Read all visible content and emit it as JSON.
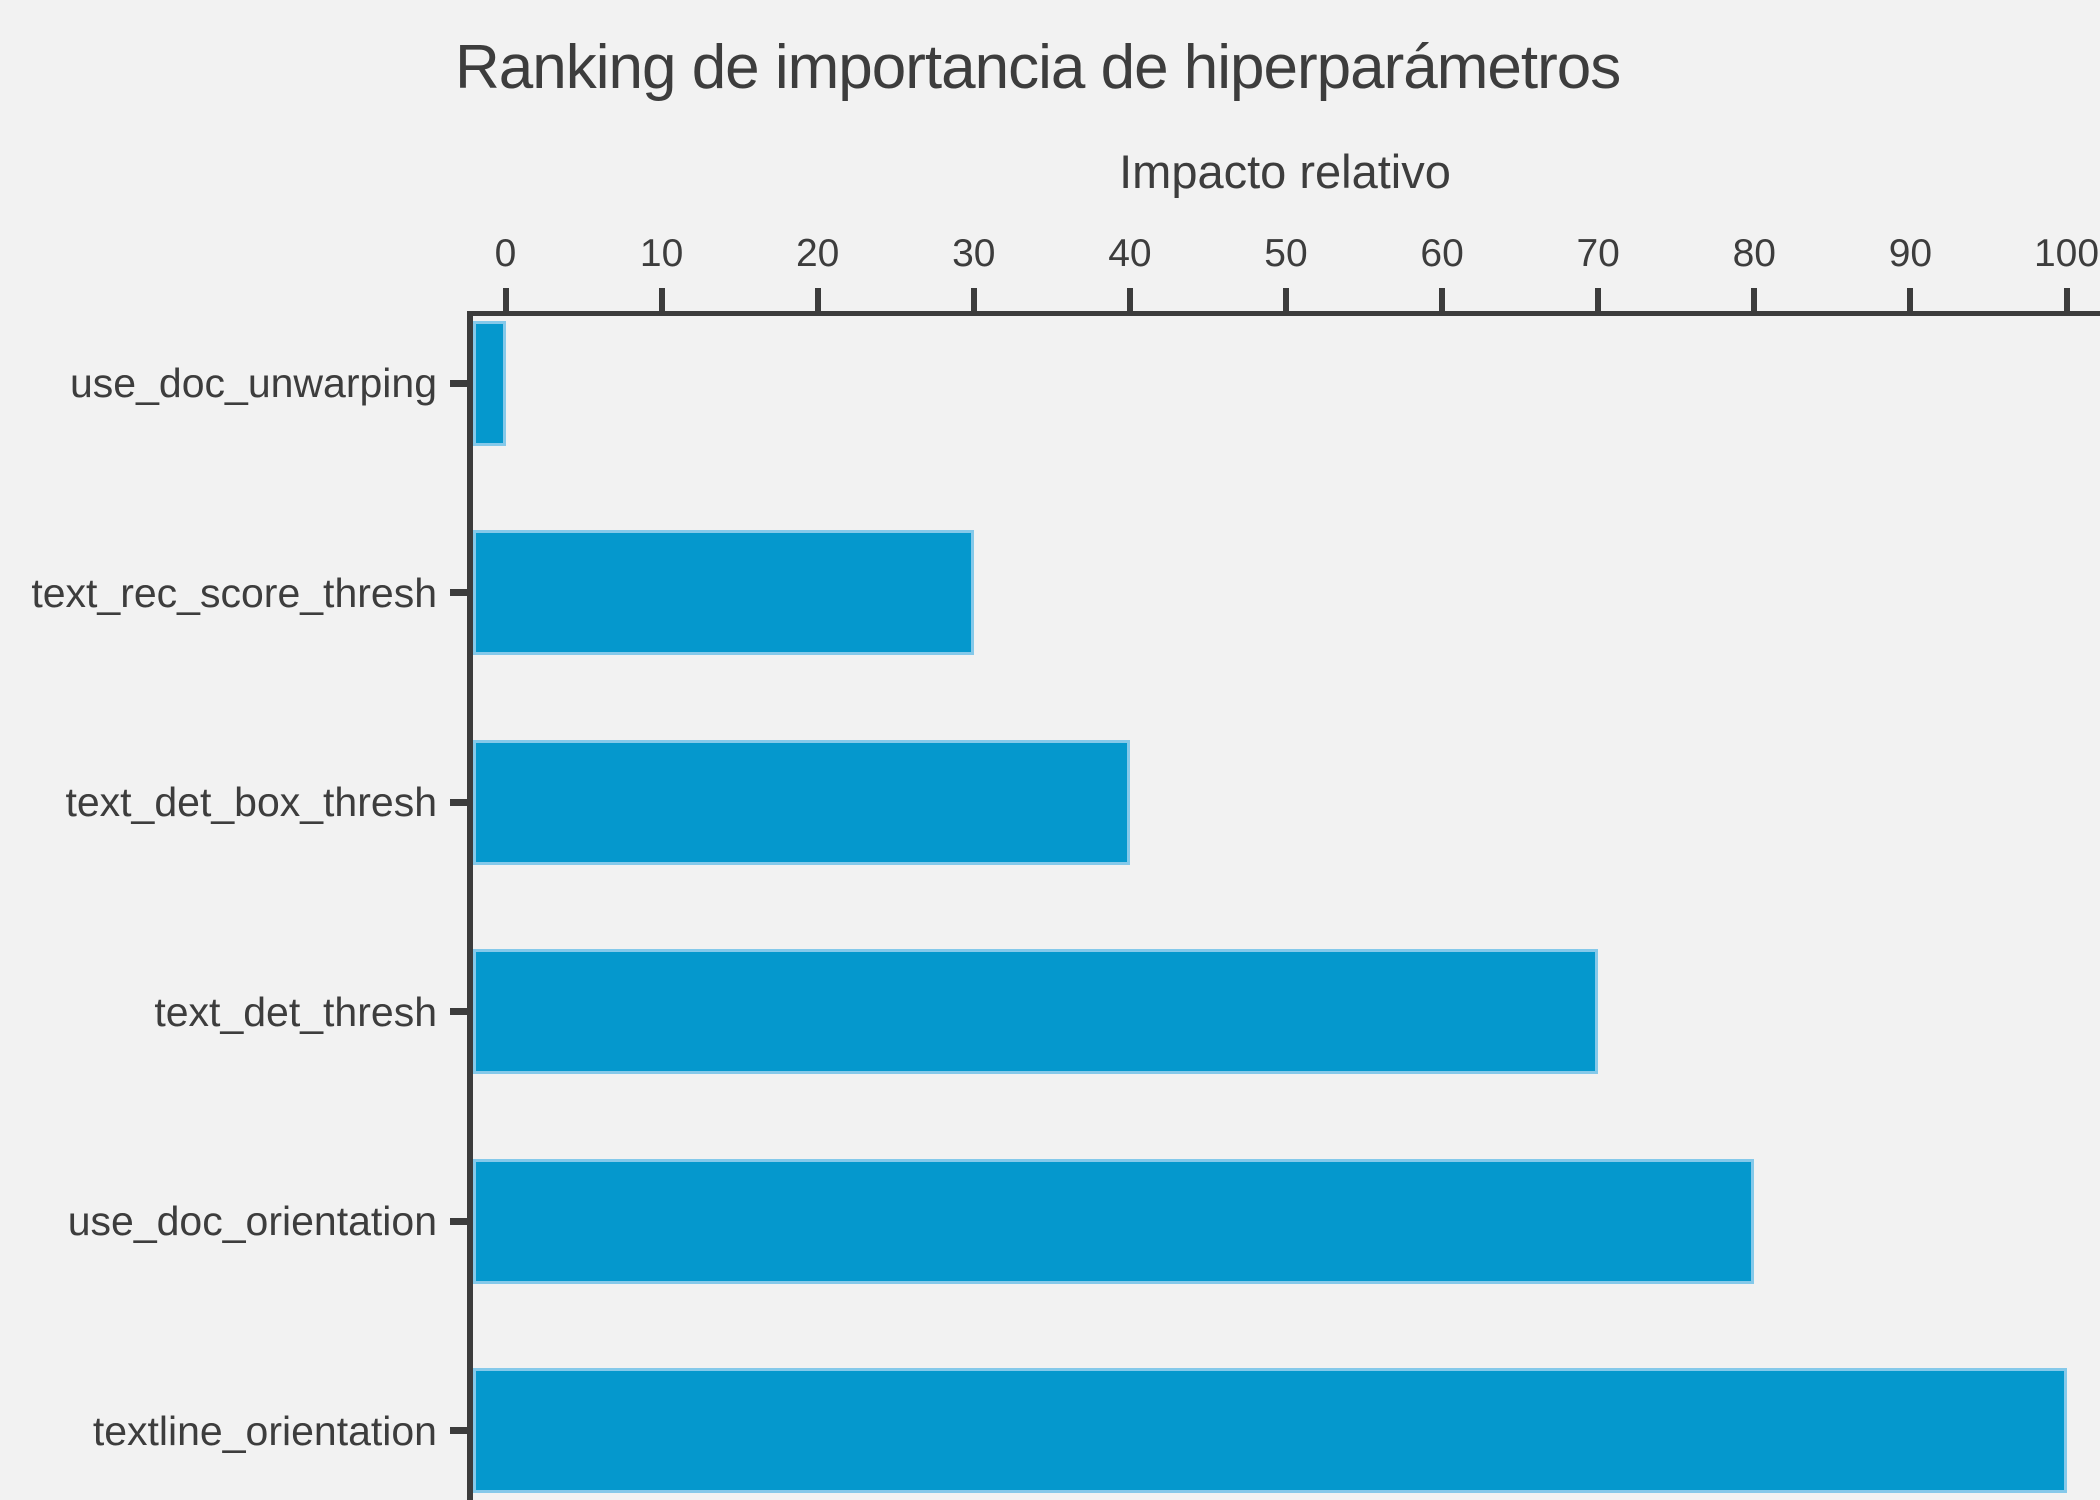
{
  "chart_data": {
    "type": "bar",
    "orientation": "horizontal",
    "title": "Ranking de importancia de hiperparámetros",
    "xlabel": "Impacto relativo",
    "categories": [
      "use_doc_unwarping",
      "text_rec_score_thresh",
      "text_det_box_thresh",
      "text_det_thresh",
      "use_doc_orientation",
      "textline_orientation"
    ],
    "values": [
      0,
      30,
      40,
      70,
      80,
      100
    ],
    "x_ticks": [
      0,
      10,
      20,
      30,
      40,
      50,
      60,
      70,
      80,
      90,
      100
    ],
    "xlim": [
      -2.1,
      102
    ],
    "axis_position": "top",
    "grid": false,
    "legend": null,
    "colors": {
      "background": "#f2f2f2",
      "bar_fill": "#0598cd",
      "bar_edge": "#85c9ea",
      "axis": "#3c3c3c",
      "text": "#3d3d3d"
    }
  }
}
